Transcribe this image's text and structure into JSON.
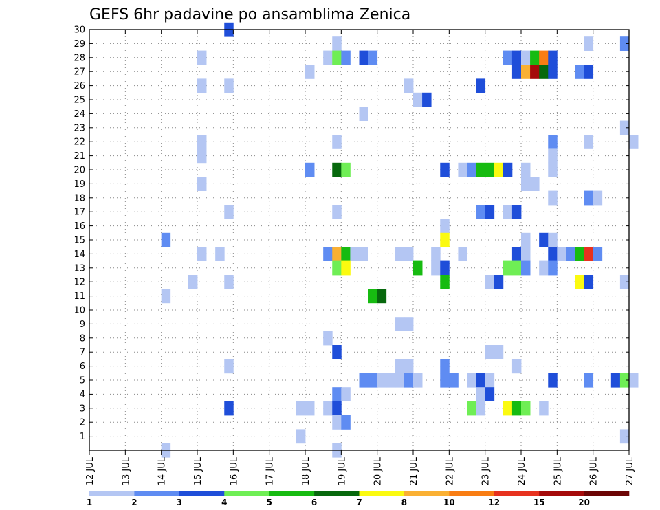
{
  "chart_data": {
    "type": "heatmap",
    "title": "GEFS 6hr padavine po ansamblima Zenica",
    "x_tick_labels": [
      "12 JUL",
      "13 JUL",
      "14 JUL",
      "15 JUL",
      "16 JUL",
      "17 JUL",
      "18 JUL",
      "19 JUL",
      "20 JUL",
      "21 JUL",
      "22 JUL",
      "23 JUL",
      "24 JUL",
      "25 JUL",
      "26 JUL",
      "27 JUL"
    ],
    "x_range_days": [
      0,
      15
    ],
    "y_tick_labels": [
      "1",
      "2",
      "3",
      "4",
      "5",
      "6",
      "7",
      "8",
      "9",
      "10",
      "11",
      "12",
      "13",
      "14",
      "15",
      "16",
      "17",
      "18",
      "19",
      "20",
      "21",
      "22",
      "23",
      "24",
      "25",
      "26",
      "27",
      "28",
      "29",
      "30"
    ],
    "y_range_members": [
      0,
      30
    ],
    "grid": true,
    "legend": {
      "placement": "bottom",
      "colors": [
        "#b4c6f3",
        "#5f8cf2",
        "#1f4ed9",
        "#6fee55",
        "#17bb11",
        "#07680d",
        "#fbfa10",
        "#fab033",
        "#f97d13",
        "#e7321f",
        "#a50a0a",
        "#6c0505"
      ],
      "labels": [
        "1",
        "2",
        "3",
        "4",
        "5",
        "6",
        "7",
        "8",
        "10",
        "12",
        "15",
        "20"
      ]
    },
    "cells": [
      [
        3.75,
        30,
        3
      ],
      [
        6.75,
        29,
        1
      ],
      [
        13.75,
        29,
        1
      ],
      [
        14.75,
        29,
        2
      ],
      [
        3,
        28,
        1
      ],
      [
        6.5,
        28,
        1
      ],
      [
        6.75,
        28,
        4
      ],
      [
        7,
        28,
        2
      ],
      [
        7.5,
        28,
        3
      ],
      [
        7.75,
        28,
        2
      ],
      [
        11.5,
        28,
        2
      ],
      [
        11.75,
        28,
        3
      ],
      [
        12,
        28,
        1
      ],
      [
        12.25,
        28,
        5
      ],
      [
        12.5,
        28,
        9
      ],
      [
        12.75,
        28,
        3
      ],
      [
        6,
        27,
        1
      ],
      [
        11.75,
        27,
        3
      ],
      [
        12,
        27,
        8
      ],
      [
        12.25,
        27,
        11
      ],
      [
        12.5,
        27,
        6
      ],
      [
        12.75,
        27,
        3
      ],
      [
        13.5,
        27,
        2
      ],
      [
        13.75,
        27,
        3
      ],
      [
        3,
        26,
        1
      ],
      [
        3.75,
        26,
        1
      ],
      [
        8.75,
        26,
        1
      ],
      [
        10.75,
        26,
        3
      ],
      [
        9,
        25,
        1
      ],
      [
        9.25,
        25,
        3
      ],
      [
        7.5,
        24,
        1
      ],
      [
        14.75,
        23,
        1
      ],
      [
        3,
        22,
        1
      ],
      [
        6.75,
        22,
        1
      ],
      [
        12.75,
        22,
        2
      ],
      [
        13.75,
        22,
        1
      ],
      [
        15,
        22,
        1
      ],
      [
        3,
        21,
        1
      ],
      [
        12.75,
        21,
        1
      ],
      [
        6,
        20,
        2
      ],
      [
        6.75,
        20,
        6
      ],
      [
        7,
        20,
        4
      ],
      [
        9.75,
        20,
        3
      ],
      [
        10.25,
        20,
        1
      ],
      [
        10.5,
        20,
        2
      ],
      [
        10.75,
        20,
        5
      ],
      [
        11,
        20,
        5
      ],
      [
        11.25,
        20,
        7
      ],
      [
        11.5,
        20,
        3
      ],
      [
        12,
        20,
        1
      ],
      [
        12.75,
        20,
        1
      ],
      [
        3,
        19,
        1
      ],
      [
        12,
        19,
        1
      ],
      [
        12.25,
        19,
        1
      ],
      [
        12.75,
        18,
        1
      ],
      [
        13.75,
        18,
        2
      ],
      [
        14,
        18,
        1
      ],
      [
        3.75,
        17,
        1
      ],
      [
        6.75,
        17,
        1
      ],
      [
        10.75,
        17,
        2
      ],
      [
        11,
        17,
        3
      ],
      [
        11.5,
        17,
        1
      ],
      [
        11.75,
        17,
        3
      ],
      [
        9.75,
        16,
        1
      ],
      [
        2,
        15,
        2
      ],
      [
        9.75,
        15,
        7
      ],
      [
        12,
        15,
        1
      ],
      [
        12.5,
        15,
        3
      ],
      [
        12.75,
        15,
        1
      ],
      [
        3,
        14,
        1
      ],
      [
        3.5,
        14,
        1
      ],
      [
        6.5,
        14,
        2
      ],
      [
        6.75,
        14,
        8
      ],
      [
        7,
        14,
        5
      ],
      [
        7.25,
        14,
        1
      ],
      [
        7.5,
        14,
        1
      ],
      [
        8.5,
        14,
        1
      ],
      [
        8.75,
        14,
        1
      ],
      [
        9.5,
        14,
        1
      ],
      [
        10.25,
        14,
        1
      ],
      [
        11.75,
        14,
        3
      ],
      [
        12,
        14,
        1
      ],
      [
        12.75,
        14,
        3
      ],
      [
        13,
        14,
        1
      ],
      [
        13.25,
        14,
        2
      ],
      [
        13.5,
        14,
        5
      ],
      [
        13.75,
        14,
        10
      ],
      [
        14,
        14,
        2
      ],
      [
        6.75,
        13,
        4
      ],
      [
        7,
        13,
        7
      ],
      [
        9,
        13,
        5
      ],
      [
        9.5,
        13,
        1
      ],
      [
        9.75,
        13,
        3
      ],
      [
        11.5,
        13,
        4
      ],
      [
        11.75,
        13,
        4
      ],
      [
        12,
        13,
        2
      ],
      [
        12.5,
        13,
        1
      ],
      [
        12.75,
        13,
        2
      ],
      [
        2.75,
        12,
        1
      ],
      [
        3.75,
        12,
        1
      ],
      [
        9.75,
        12,
        5
      ],
      [
        11,
        12,
        1
      ],
      [
        11.25,
        12,
        3
      ],
      [
        13.5,
        12,
        7
      ],
      [
        13.75,
        12,
        3
      ],
      [
        14.75,
        12,
        1
      ],
      [
        2,
        11,
        1
      ],
      [
        7.75,
        11,
        5
      ],
      [
        8,
        11,
        6
      ],
      [
        8.5,
        9,
        1
      ],
      [
        8.75,
        9,
        1
      ],
      [
        6.5,
        8,
        1
      ],
      [
        6.75,
        7,
        3
      ],
      [
        11,
        7,
        1
      ],
      [
        11.25,
        7,
        1
      ],
      [
        3.75,
        6,
        1
      ],
      [
        8.5,
        6,
        1
      ],
      [
        8.75,
        6,
        1
      ],
      [
        9.75,
        6,
        2
      ],
      [
        11.75,
        6,
        1
      ],
      [
        7.5,
        5,
        2
      ],
      [
        7.75,
        5,
        2
      ],
      [
        8,
        5,
        1
      ],
      [
        8.25,
        5,
        1
      ],
      [
        8.5,
        5,
        1
      ],
      [
        8.75,
        5,
        2
      ],
      [
        9,
        5,
        1
      ],
      [
        9.75,
        5,
        2
      ],
      [
        10,
        5,
        2
      ],
      [
        10.5,
        5,
        1
      ],
      [
        10.75,
        5,
        3
      ],
      [
        11,
        5,
        1
      ],
      [
        12.75,
        5,
        3
      ],
      [
        13.75,
        5,
        2
      ],
      [
        14.5,
        5,
        3
      ],
      [
        14.75,
        5,
        4
      ],
      [
        15,
        5,
        1
      ],
      [
        6.75,
        4,
        2
      ],
      [
        7,
        4,
        1
      ],
      [
        10.75,
        4,
        1
      ],
      [
        11,
        4,
        3
      ],
      [
        3.75,
        3,
        3
      ],
      [
        5.75,
        3,
        1
      ],
      [
        6,
        3,
        1
      ],
      [
        6.5,
        3,
        1
      ],
      [
        6.75,
        3,
        3
      ],
      [
        10.5,
        3,
        4
      ],
      [
        10.75,
        3,
        1
      ],
      [
        11.5,
        3,
        7
      ],
      [
        11.75,
        3,
        5
      ],
      [
        12,
        3,
        4
      ],
      [
        12.5,
        3,
        1
      ],
      [
        6.75,
        2,
        1
      ],
      [
        7,
        2,
        2
      ],
      [
        5.75,
        1,
        1
      ],
      [
        14.75,
        1,
        1
      ],
      [
        2,
        0,
        1
      ],
      [
        6.75,
        0,
        1
      ]
    ]
  }
}
